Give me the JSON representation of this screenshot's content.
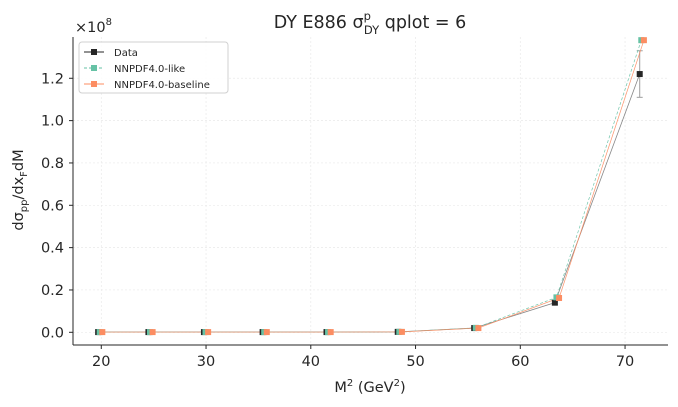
{
  "chart_data": {
    "type": "line",
    "title": {
      "main": "DY E886 σ",
      "sup": "p",
      "sub": "DY",
      "suffix": " qplot = 6"
    },
    "xlabel": {
      "main": "M",
      "sup": "2",
      "rest": " (GeV",
      "sup2": "2",
      "end": ")"
    },
    "ylabel": {
      "a": "dσ",
      "sub1": "pp",
      "b": "/dx",
      "sub2": "F",
      "c": "dM"
    },
    "y_offset": {
      "base": "×10",
      "exp": "8"
    },
    "xlim": [
      17.3,
      74.1
    ],
    "ylim": [
      -0.06,
      1.395
    ],
    "xticks": [
      20,
      30,
      40,
      50,
      60,
      70
    ],
    "yticks": [
      0.0,
      0.2,
      0.4,
      0.6,
      0.8,
      1.0,
      1.2
    ],
    "ytick_labels": [
      "0.0",
      "0.2",
      "0.4",
      "0.6",
      "0.8",
      "1.0",
      "1.2"
    ],
    "grid": true,
    "legend_position": "top-left",
    "series": [
      {
        "name": "Data",
        "color": "#262626",
        "marker": "square",
        "x": [
          19.7,
          24.5,
          29.8,
          35.4,
          41.5,
          48.3,
          55.6,
          63.3,
          71.4
        ],
        "y": [
          0.001,
          0.001,
          0.001,
          0.001,
          0.001,
          0.002,
          0.02,
          0.14,
          1.22
        ],
        "yerr": [
          0.0,
          0.0,
          0.0,
          0.0,
          0.0,
          0.0,
          0.003,
          0.01,
          0.11
        ]
      },
      {
        "name": "NNPDF4.0-like",
        "color": "#66c2a5",
        "marker": "square",
        "x": [
          19.85,
          24.65,
          29.95,
          35.55,
          41.65,
          48.45,
          55.75,
          63.45,
          71.55
        ],
        "y": [
          0.001,
          0.001,
          0.001,
          0.001,
          0.001,
          0.002,
          0.021,
          0.165,
          1.38
        ]
      },
      {
        "name": "NNPDF4.0-baseline",
        "color": "#fc8d62",
        "marker": "square",
        "x": [
          20.1,
          24.9,
          30.2,
          35.8,
          41.9,
          48.7,
          56.0,
          63.7,
          71.8
        ],
        "y": [
          0.001,
          0.001,
          0.001,
          0.001,
          0.001,
          0.002,
          0.02,
          0.162,
          1.38
        ]
      }
    ]
  }
}
